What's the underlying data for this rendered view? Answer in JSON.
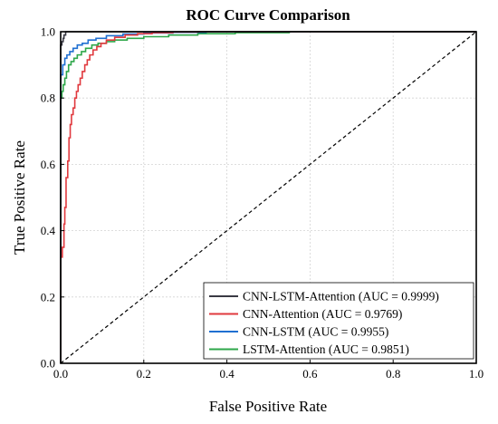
{
  "chart_data": {
    "type": "line",
    "title": "ROC Curve Comparison",
    "xlabel": "False Positive Rate",
    "ylabel": "True Positive Rate",
    "xlim": [
      0,
      1
    ],
    "ylim": [
      0,
      1
    ],
    "xticks": [
      "0.0",
      "0.2",
      "0.4",
      "0.6",
      "0.8",
      "1.0"
    ],
    "yticks": [
      "0.0",
      "0.2",
      "0.4",
      "0.6",
      "0.8",
      "1.0"
    ],
    "grid": true,
    "legend_position": "bottom-right",
    "series": [
      {
        "name": "CNN-LSTM-Attention (AUC = 0.9999)",
        "color": "#3a3a44",
        "x": [
          0,
          0,
          0.003,
          0.006,
          0.008,
          0.012,
          1
        ],
        "y": [
          0,
          0.96,
          0.97,
          0.98,
          0.99,
          1.0,
          1.0
        ]
      },
      {
        "name": "CNN-Attention (AUC = 0.9769)",
        "color": "#e0393e",
        "x": [
          0,
          0,
          0.004,
          0.008,
          0.01,
          0.013,
          0.017,
          0.02,
          0.023,
          0.026,
          0.03,
          0.034,
          0.038,
          0.042,
          0.047,
          0.052,
          0.058,
          0.064,
          0.07,
          0.078,
          0.087,
          0.097,
          0.11,
          0.13,
          0.155,
          0.185,
          0.22,
          0.27,
          0.33,
          1
        ],
        "y": [
          0,
          0.32,
          0.35,
          0.42,
          0.47,
          0.56,
          0.61,
          0.68,
          0.72,
          0.75,
          0.77,
          0.8,
          0.82,
          0.84,
          0.86,
          0.88,
          0.9,
          0.915,
          0.93,
          0.945,
          0.955,
          0.965,
          0.975,
          0.983,
          0.99,
          0.994,
          0.997,
          0.999,
          1.0,
          1.0
        ]
      },
      {
        "name": "CNN-LSTM (AUC = 0.9955)",
        "color": "#1f6fd1",
        "x": [
          0,
          0,
          0.005,
          0.01,
          0.015,
          0.022,
          0.03,
          0.04,
          0.052,
          0.066,
          0.085,
          0.11,
          0.15,
          0.2,
          0.27,
          0.35,
          1
        ],
        "y": [
          0,
          0.87,
          0.9,
          0.92,
          0.93,
          0.94,
          0.95,
          0.96,
          0.965,
          0.975,
          0.98,
          0.988,
          0.993,
          0.996,
          0.998,
          1.0,
          1.0
        ]
      },
      {
        "name": "LSTM-Attention (AUC = 0.9851)",
        "color": "#2ea74a",
        "x": [
          0,
          0,
          0.003,
          0.006,
          0.01,
          0.014,
          0.019,
          0.025,
          0.032,
          0.04,
          0.05,
          0.06,
          0.075,
          0.09,
          0.11,
          0.13,
          0.16,
          0.2,
          0.26,
          0.33,
          0.42,
          0.55,
          1
        ],
        "y": [
          0,
          0.8,
          0.82,
          0.84,
          0.86,
          0.88,
          0.9,
          0.91,
          0.92,
          0.93,
          0.94,
          0.95,
          0.96,
          0.965,
          0.97,
          0.975,
          0.98,
          0.985,
          0.99,
          0.994,
          0.997,
          1.0,
          1.0
        ]
      }
    ],
    "reference_line": {
      "x": [
        0,
        1
      ],
      "y": [
        0,
        1
      ],
      "style": "dashed",
      "color": "#000000"
    }
  }
}
